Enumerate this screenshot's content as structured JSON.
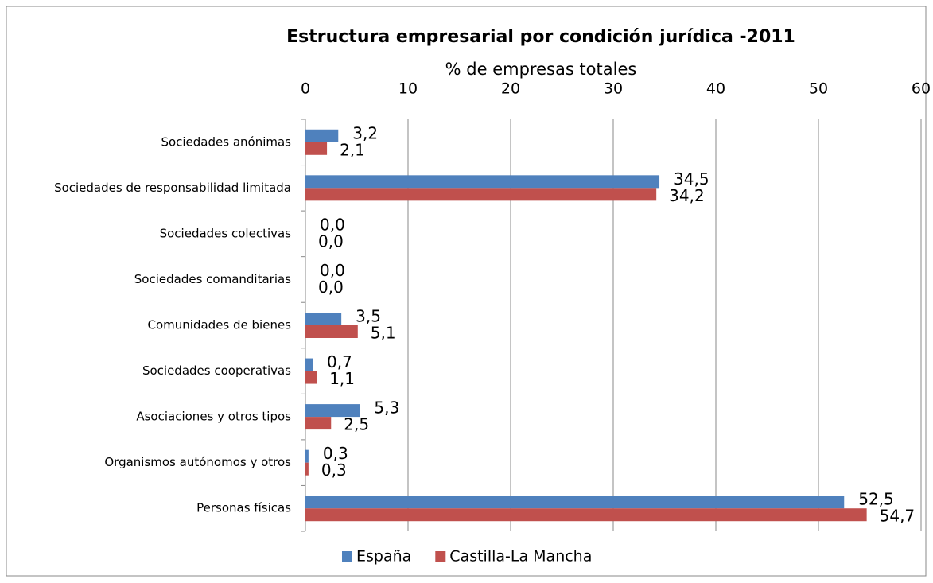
{
  "chart_data": {
    "type": "barh",
    "title": "Estructura empresarial por condición jurídica -2011",
    "xlabel": "% de empresas totales",
    "categories": [
      "Sociedades anónimas",
      "Sociedades de responsabilidad limitada",
      "Sociedades colectivas",
      "Sociedades comanditarias",
      "Comunidades de bienes",
      "Sociedades cooperativas",
      "Asociaciones y otros tipos",
      "Organismos autónomos y otros",
      "Personas físicas"
    ],
    "series": [
      {
        "name": "España",
        "color": "#4f81bd",
        "values": [
          3.2,
          34.5,
          0.0,
          0.0,
          3.5,
          0.7,
          5.3,
          0.3,
          52.5
        ],
        "value_labels": [
          "3,2",
          "34,5",
          "0,0",
          "0,0",
          "3,5",
          "0,7",
          "5,3",
          "0,3",
          "52,5"
        ]
      },
      {
        "name": "Castilla-La Mancha",
        "color": "#c0504d",
        "values": [
          2.1,
          34.2,
          0.0,
          0.0,
          5.1,
          1.1,
          2.5,
          0.3,
          54.7
        ],
        "value_labels": [
          "2,1",
          "34,2",
          "0,0",
          "0,0",
          "5,1",
          "1,1",
          "2,5",
          "0,3",
          "54,7"
        ]
      }
    ],
    "xlim": [
      0,
      60
    ],
    "xticks": [
      0,
      10,
      20,
      30,
      40,
      50,
      60
    ],
    "grid": true,
    "legend": "bottom"
  }
}
